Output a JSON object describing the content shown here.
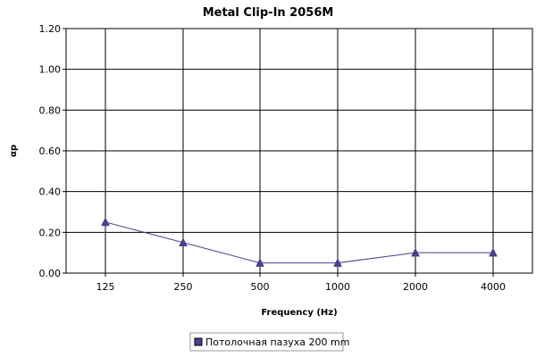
{
  "chart_data": {
    "type": "line",
    "title": "Metal Clip-In 2056M",
    "xlabel": "Frequency (Hz)",
    "ylabel": "αp",
    "categories": [
      "125",
      "250",
      "500",
      "1000",
      "2000",
      "4000"
    ],
    "series": [
      {
        "name": "Потолочная пазуха 200 mm",
        "values": [
          0.25,
          0.15,
          0.05,
          0.05,
          0.1,
          0.1
        ]
      }
    ],
    "ylim": [
      0,
      1.2
    ],
    "yticks": [
      "0.00",
      "0.20",
      "0.40",
      "0.60",
      "0.80",
      "1.00",
      "1.20"
    ],
    "grid": true,
    "legend_position": "bottom-center",
    "colors": {
      "series": "#4b3f8c",
      "grid": "#000000"
    }
  }
}
